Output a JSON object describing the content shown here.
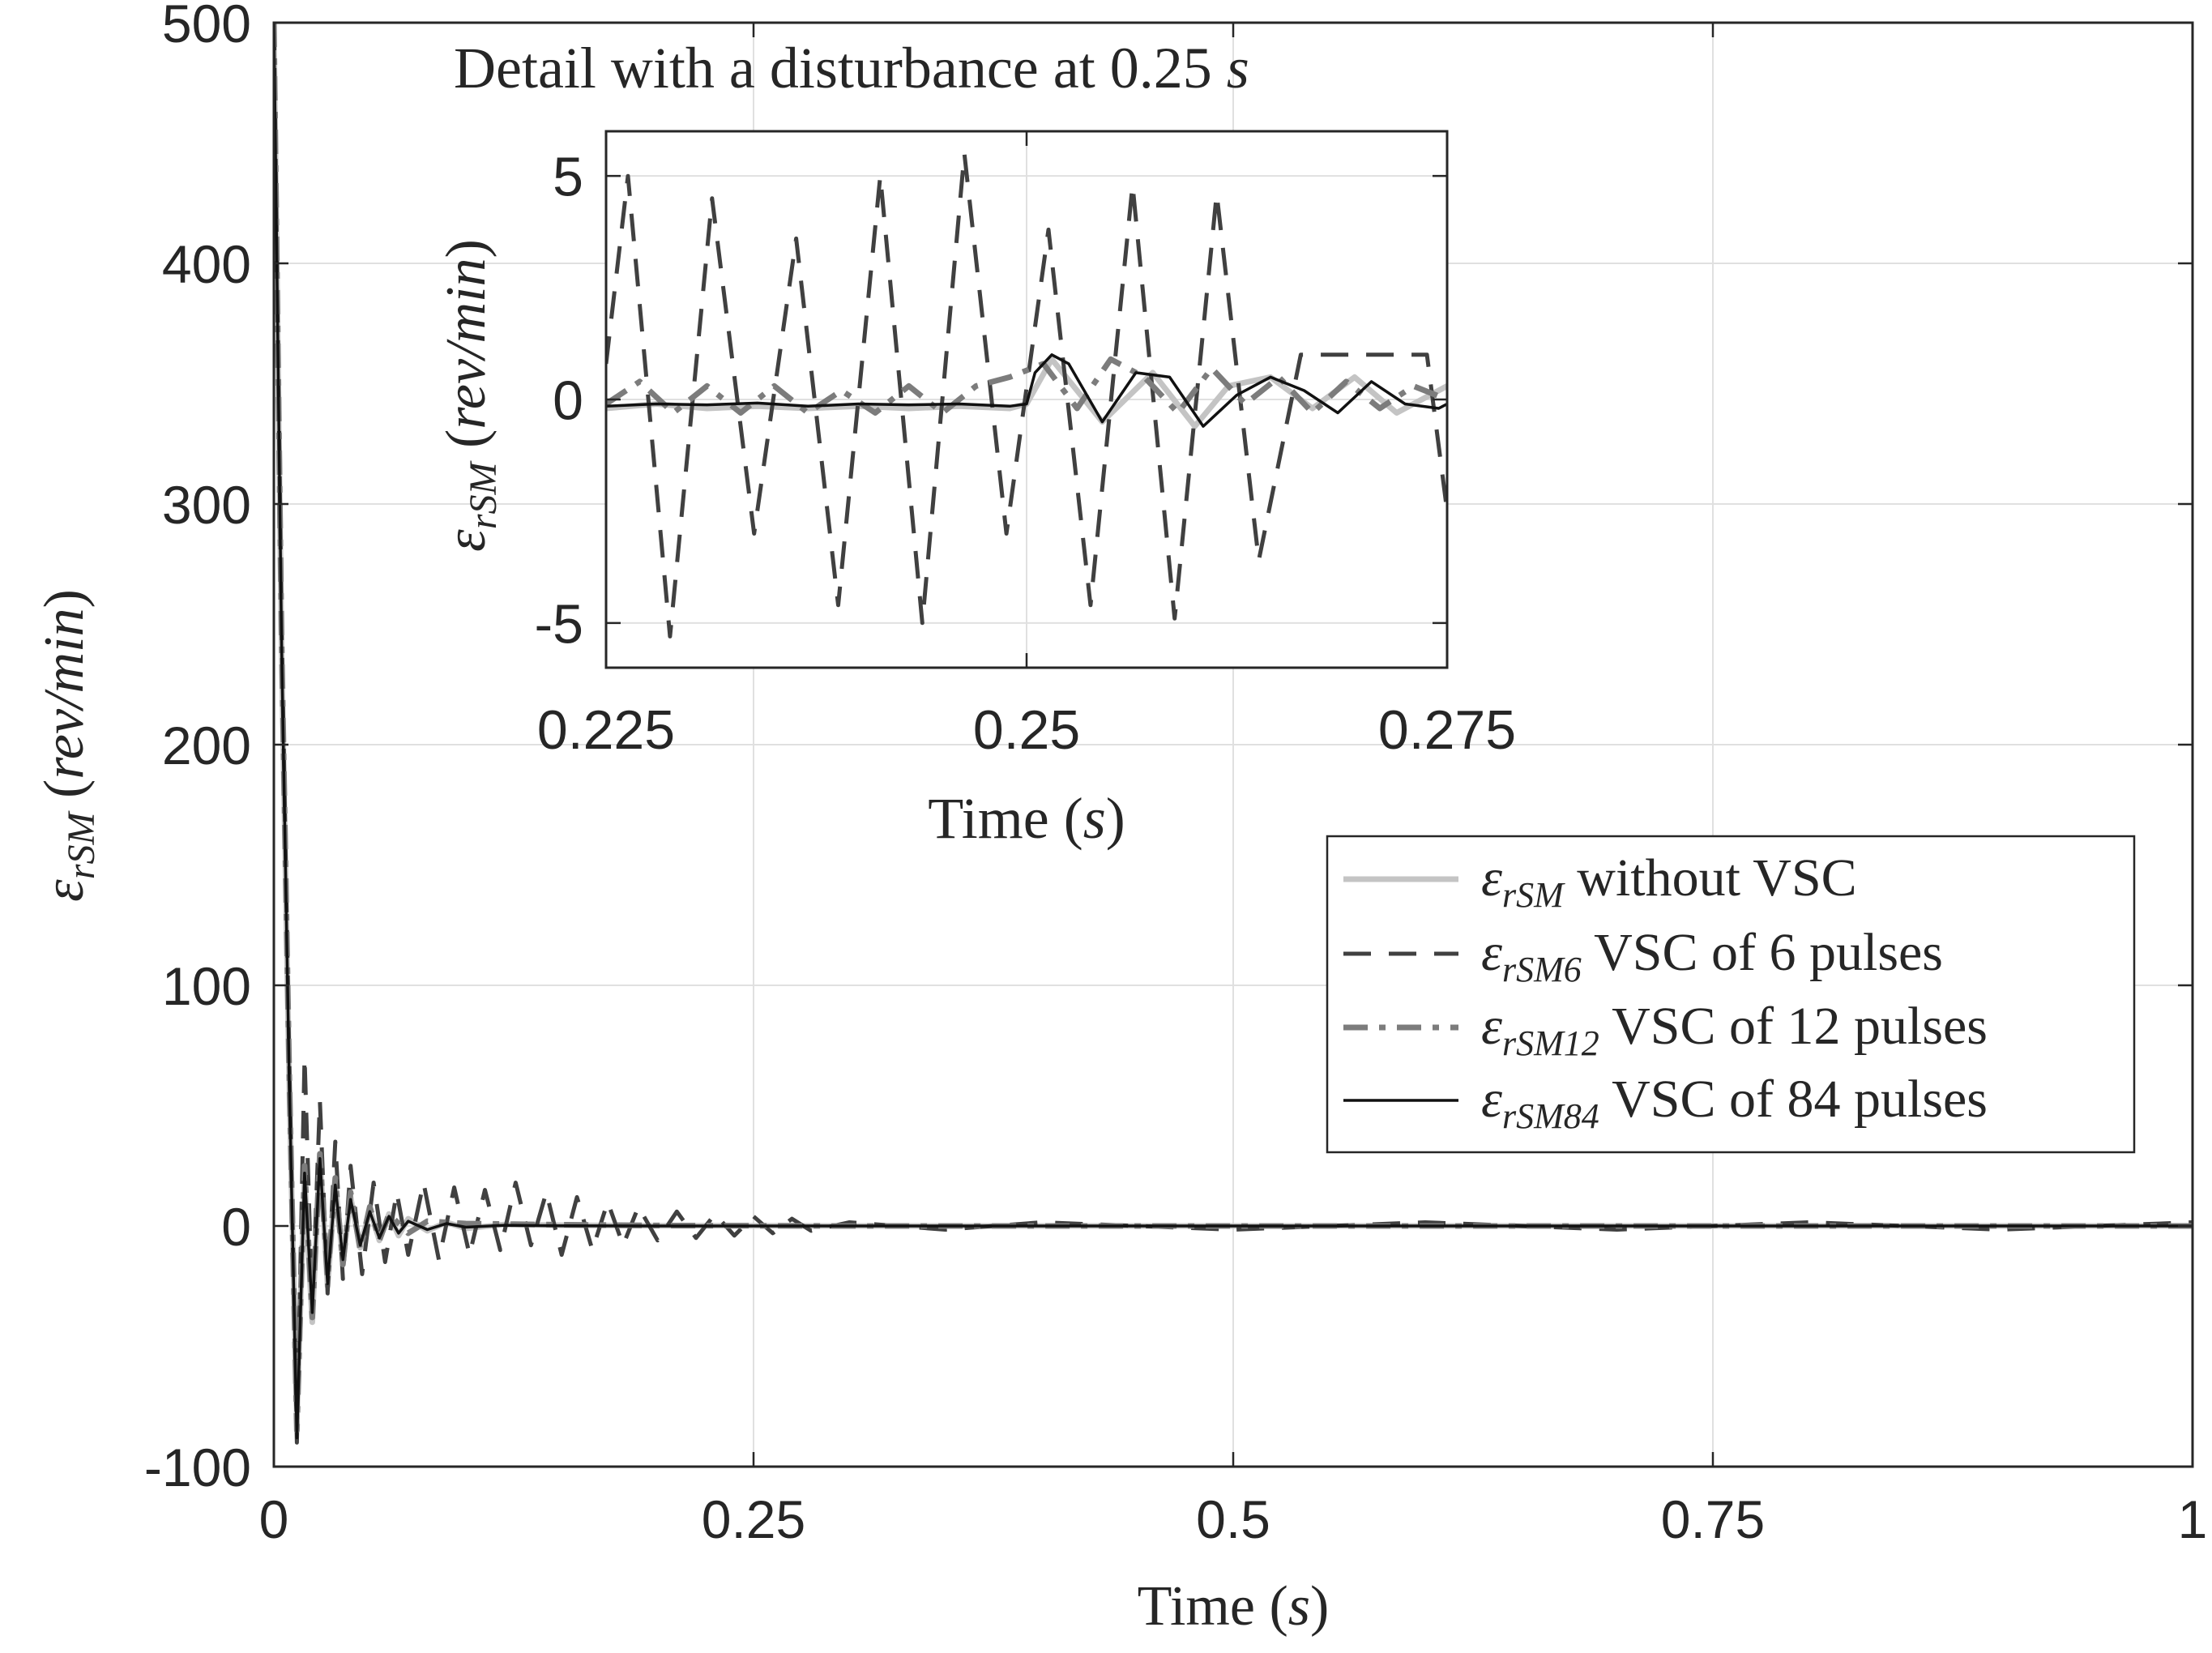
{
  "chart_data": [
    {
      "id": "main",
      "type": "line",
      "title": "",
      "xlabel": "Time",
      "xlabel_unit": "s",
      "ylabel_sym": "ε",
      "ylabel_sub": "rSM",
      "ylabel_unit": "rev/min",
      "xlim": [
        0,
        1
      ],
      "ylim": [
        -100,
        500
      ],
      "grid": true,
      "legend_position": "middle-right",
      "xticks": [
        {
          "value": 0,
          "label": "0"
        },
        {
          "value": 0.25,
          "label": "0.25"
        },
        {
          "value": 0.5,
          "label": "0.5"
        },
        {
          "value": 0.75,
          "label": "0.75"
        },
        {
          "value": 1,
          "label": "1"
        }
      ],
      "yticks": [
        {
          "value": -100,
          "label": "-100"
        },
        {
          "value": 0,
          "label": "0"
        },
        {
          "value": 100,
          "label": "100"
        },
        {
          "value": 200,
          "label": "200"
        },
        {
          "value": 300,
          "label": "300"
        },
        {
          "value": 400,
          "label": "400"
        },
        {
          "value": 500,
          "label": "500"
        }
      ],
      "series": [
        {
          "name": "without VSC",
          "sub": "rSM",
          "color": "#c4c4c4",
          "style": "solid",
          "x": [
            0,
            0.004,
            0.008,
            0.012,
            0.016,
            0.02,
            0.024,
            0.028,
            0.032,
            0.036,
            0.04,
            0.045,
            0.05,
            0.055,
            0.06,
            0.065,
            0.07,
            0.08,
            0.09,
            0.1,
            0.12,
            0.15,
            0.2,
            0.3,
            0.5,
            0.75,
            1
          ],
          "y": [
            500,
            240,
            60,
            -80,
            20,
            -40,
            30,
            -25,
            18,
            -15,
            12,
            -9,
            7,
            -6,
            5,
            -4,
            3,
            -2,
            1.5,
            -1,
            0.6,
            0.3,
            0.1,
            0,
            0,
            0,
            0
          ]
        },
        {
          "name": "VSC of 6 pulses",
          "sub": "rSM6",
          "color": "#404040",
          "style": "dashed",
          "x": [
            0,
            0.004,
            0.008,
            0.012,
            0.016,
            0.02,
            0.024,
            0.028,
            0.032,
            0.036,
            0.04,
            0.046,
            0.052,
            0.058,
            0.064,
            0.07,
            0.078,
            0.086,
            0.094,
            0.102,
            0.11,
            0.118,
            0.126,
            0.134,
            0.142,
            0.15,
            0.158,
            0.166,
            0.174,
            0.182,
            0.19,
            0.2,
            0.21,
            0.22,
            0.23,
            0.24,
            0.25,
            0.26,
            0.27,
            0.28,
            0.3,
            0.35,
            0.4,
            0.5,
            0.6,
            0.7,
            0.8,
            0.9,
            1
          ],
          "y": [
            500,
            250,
            70,
            -90,
            70,
            -35,
            52,
            -28,
            35,
            -22,
            25,
            -20,
            18,
            -15,
            14,
            -12,
            18,
            -14,
            16,
            -12,
            15,
            -10,
            18,
            -8,
            14,
            -12,
            12,
            -10,
            10,
            -8,
            8,
            -6,
            6,
            -5,
            5,
            -4,
            4,
            -3,
            3,
            -2,
            1.5,
            -1.5,
            1.5,
            -1.5,
            1.5,
            -1.5,
            1.5,
            -1.5,
            1.5
          ]
        },
        {
          "name": "VSC of 12 pulses",
          "sub": "rSM12",
          "color": "#7c7c7c",
          "style": "dashdot",
          "x": [
            0,
            0.004,
            0.008,
            0.012,
            0.016,
            0.02,
            0.024,
            0.028,
            0.032,
            0.036,
            0.04,
            0.045,
            0.05,
            0.055,
            0.06,
            0.07,
            0.08,
            0.1,
            0.15,
            0.2,
            0.3,
            0.5,
            0.75,
            1
          ],
          "y": [
            500,
            245,
            65,
            -85,
            25,
            -38,
            30,
            -22,
            20,
            -16,
            14,
            -10,
            8,
            -6,
            5,
            -3,
            2,
            1,
            0.5,
            0.2,
            0,
            0,
            0,
            0
          ]
        },
        {
          "name": "VSC of 84 pulses",
          "sub": "rSM84",
          "color": "#111111",
          "style": "solid",
          "x": [
            0,
            0.004,
            0.008,
            0.012,
            0.016,
            0.02,
            0.024,
            0.028,
            0.032,
            0.036,
            0.04,
            0.045,
            0.05,
            0.055,
            0.06,
            0.065,
            0.07,
            0.08,
            0.09,
            0.1,
            0.12,
            0.15,
            0.2,
            0.3,
            0.5,
            0.75,
            1
          ],
          "y": [
            500,
            242,
            62,
            -88,
            22,
            -36,
            28,
            -24,
            17,
            -14,
            11,
            -8,
            6,
            -5,
            4,
            -3,
            2,
            -1.5,
            1,
            -0.5,
            0.3,
            0.1,
            0,
            0,
            0,
            0,
            0
          ]
        }
      ]
    },
    {
      "id": "inset",
      "type": "line",
      "title": "Detail with a disturbance at 0.25 s",
      "title_text": "Detail with a disturbance at 0.25",
      "title_unit": "s",
      "xlabel": "Time",
      "xlabel_unit": "s",
      "ylabel_sym": "ε",
      "ylabel_sub": "rSM",
      "ylabel_unit": "rev/min",
      "xlim": [
        0.225,
        0.275
      ],
      "ylim": [
        -6,
        6
      ],
      "grid": true,
      "xticks": [
        {
          "value": 0.225,
          "label": "0.225"
        },
        {
          "value": 0.25,
          "label": "0.25"
        },
        {
          "value": 0.275,
          "label": "0.275"
        }
      ],
      "yticks": [
        {
          "value": -5,
          "label": "-5"
        },
        {
          "value": 0,
          "label": "0"
        },
        {
          "value": 5,
          "label": "5"
        }
      ],
      "series": [
        {
          "name": "without VSC",
          "color": "#c4c4c4",
          "style": "solid",
          "x": [
            0.225,
            0.228,
            0.231,
            0.234,
            0.237,
            0.24,
            0.243,
            0.246,
            0.249,
            0.25,
            0.2515,
            0.2545,
            0.2575,
            0.26,
            0.262,
            0.2645,
            0.267,
            0.2695,
            0.272,
            0.275
          ],
          "y": [
            -0.2,
            -0.1,
            -0.2,
            -0.15,
            -0.2,
            -0.15,
            -0.2,
            -0.15,
            -0.2,
            -0.1,
            0.9,
            -0.5,
            0.6,
            -0.6,
            0.3,
            0.5,
            -0.2,
            0.5,
            -0.3,
            0.3
          ]
        },
        {
          "name": "VSC of 6 pulses",
          "color": "#404040",
          "style": "dashed",
          "x": [
            0.225,
            0.2263,
            0.2288,
            0.2313,
            0.2338,
            0.2363,
            0.2388,
            0.2413,
            0.2438,
            0.2463,
            0.2488,
            0.2513,
            0.2538,
            0.2563,
            0.2588,
            0.2613,
            0.2638,
            0.2663,
            0.2688,
            0.2713,
            0.2738,
            0.275
          ],
          "y": [
            0.8,
            5.0,
            -5.3,
            4.5,
            -3.0,
            3.6,
            -4.6,
            5.0,
            -5.0,
            5.5,
            -3.0,
            3.8,
            -4.6,
            4.8,
            -4.9,
            4.6,
            -3.6,
            1.0,
            1.0,
            1.0,
            1.0,
            -2.5
          ]
        },
        {
          "name": "VSC of 12 pulses",
          "color": "#7c7c7c",
          "style": "dashdot",
          "x": [
            0.225,
            0.227,
            0.229,
            0.231,
            0.233,
            0.235,
            0.237,
            0.239,
            0.241,
            0.243,
            0.245,
            0.247,
            0.249,
            0.251,
            0.253,
            0.255,
            0.257,
            0.259,
            0.261,
            0.263,
            0.265,
            0.267,
            0.269,
            0.271,
            0.273,
            0.275
          ],
          "y": [
            -0.1,
            0.4,
            -0.3,
            0.3,
            -0.3,
            0.3,
            -0.3,
            0.2,
            -0.3,
            0.3,
            -0.3,
            0.3,
            0.5,
            0.8,
            -0.2,
            0.9,
            0.5,
            -0.3,
            0.7,
            -0.1,
            0.5,
            -0.3,
            0.4,
            -0.2,
            0.3,
            0.0
          ]
        },
        {
          "name": "VSC of 84 pulses",
          "color": "#111111",
          "style": "solid",
          "x": [
            0.225,
            0.228,
            0.231,
            0.234,
            0.237,
            0.24,
            0.243,
            0.246,
            0.249,
            0.25,
            0.2505,
            0.2515,
            0.2525,
            0.2545,
            0.2565,
            0.2585,
            0.2605,
            0.2625,
            0.2645,
            0.2665,
            0.2685,
            0.2705,
            0.2725,
            0.2745,
            0.275
          ],
          "y": [
            -0.15,
            -0.1,
            -0.12,
            -0.08,
            -0.15,
            -0.1,
            -0.12,
            -0.1,
            -0.15,
            -0.1,
            0.6,
            1.0,
            0.8,
            -0.5,
            0.6,
            0.5,
            -0.6,
            0.1,
            0.5,
            0.2,
            -0.3,
            0.4,
            -0.1,
            -0.2,
            -0.1
          ]
        }
      ]
    }
  ]
}
